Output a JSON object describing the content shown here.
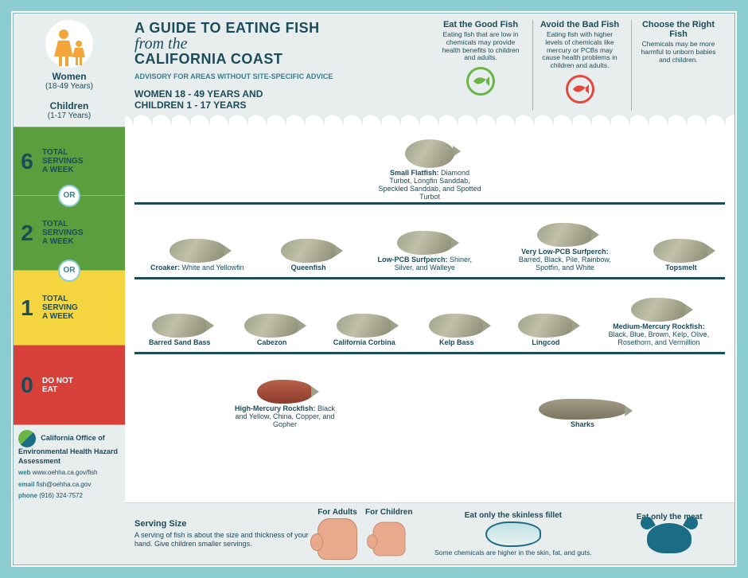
{
  "colors": {
    "border": "#8bcdd0",
    "text": "#1b4c5a",
    "green": "#5a9e3e",
    "yellow": "#f6d640",
    "red": "#d8403a",
    "good": "#6bb544",
    "bad": "#e5493d",
    "teal": "#1b6d86"
  },
  "sidebar": {
    "women_label": "Women",
    "women_range": "(18-49 Years)",
    "children_label": "Children",
    "children_range": "(1-17 Years)",
    "rows": [
      {
        "num": "6",
        "text": "TOTAL\nSERVINGS\nA WEEK",
        "bg": "bg-green"
      },
      {
        "num": "2",
        "text": "TOTAL\nSERVINGS\nA WEEK",
        "bg": "bg-green"
      },
      {
        "num": "1",
        "text": "TOTAL\nSERVING\nA WEEK",
        "bg": "bg-yellow"
      },
      {
        "num": "0",
        "text": "DO NOT\nEAT",
        "bg": "bg-red"
      }
    ],
    "or": "OR",
    "org": "California Office of Environmental Health Hazard Assessment",
    "web_k": "web",
    "web": "www.oehha.ca.gov/fish",
    "email_k": "email",
    "email": "fish@oehha.ca.gov",
    "phone_k": "phone",
    "phone": "(916) 324-7572"
  },
  "header": {
    "title1": "A GUIDE TO EATING FISH",
    "title2": "from the",
    "title3": "CALIFORNIA COAST",
    "subtitle": "ADVISORY FOR AREAS WITHOUT SITE-SPECIFIC ADVICE",
    "audience": "WOMEN 18 - 49 YEARS AND\nCHILDREN 1 - 17 YEARS",
    "tips": [
      {
        "h": "Eat the Good Fish",
        "p": "Eating fish that are low in chemicals may provide health benefits to children and adults.",
        "icon": "good"
      },
      {
        "h": "Avoid the Bad Fish",
        "p": "Eating fish with higher levels of chemicals like mercury or PCBs may cause health problems in children and adults.",
        "icon": "bad"
      },
      {
        "h": "Choose the Right Fish",
        "p": "Chemicals may be more harmful to unborn babies and children.",
        "icon": ""
      }
    ]
  },
  "rows": {
    "r6": [
      {
        "b": "Small Flatfish: ",
        "t": "Diamond Turbot, Longfin Sanddab, Speckled Sanddab, and Spotted Turbot"
      }
    ],
    "r2": [
      {
        "b": "Croaker: ",
        "t": "White and Yellowfin"
      },
      {
        "b": "Queenfish",
        "t": ""
      },
      {
        "b": "Low-PCB Surfperch: ",
        "t": "Shiner, Silver, and Walleye"
      },
      {
        "b": "Very Low-PCB Surfperch: ",
        "t": "Barred, Black, Pile, Rainbow, Spotfin, and White"
      },
      {
        "b": "Topsmelt",
        "t": ""
      }
    ],
    "r1": [
      {
        "b": "Barred Sand Bass",
        "t": ""
      },
      {
        "b": "Cabezon",
        "t": ""
      },
      {
        "b": "California Corbina",
        "t": ""
      },
      {
        "b": "Kelp Bass",
        "t": ""
      },
      {
        "b": "Lingcod",
        "t": ""
      },
      {
        "b": "Medium-Mercury Rockfish: ",
        "t": "Black, Blue, Brown, Kelp, Olive, Rosethorn, and Vermillion"
      }
    ],
    "r0": [
      {
        "b": "High-Mercury Rockfish: ",
        "t": "Black and Yellow, China, Copper, and Gopher"
      },
      {
        "b": "Sharks",
        "t": ""
      }
    ]
  },
  "footer": {
    "serv_h": "Serving Size",
    "serv_p": "A serving of fish is about the size and thickness of your hand. Give children smaller servings.",
    "adults": "For Adults",
    "children": "For Children",
    "fillet_h": "Eat only the skinless fillet",
    "crab_h": "Eat only the meat",
    "note": "Some chemicals are higher in the skin, fat, and guts."
  }
}
